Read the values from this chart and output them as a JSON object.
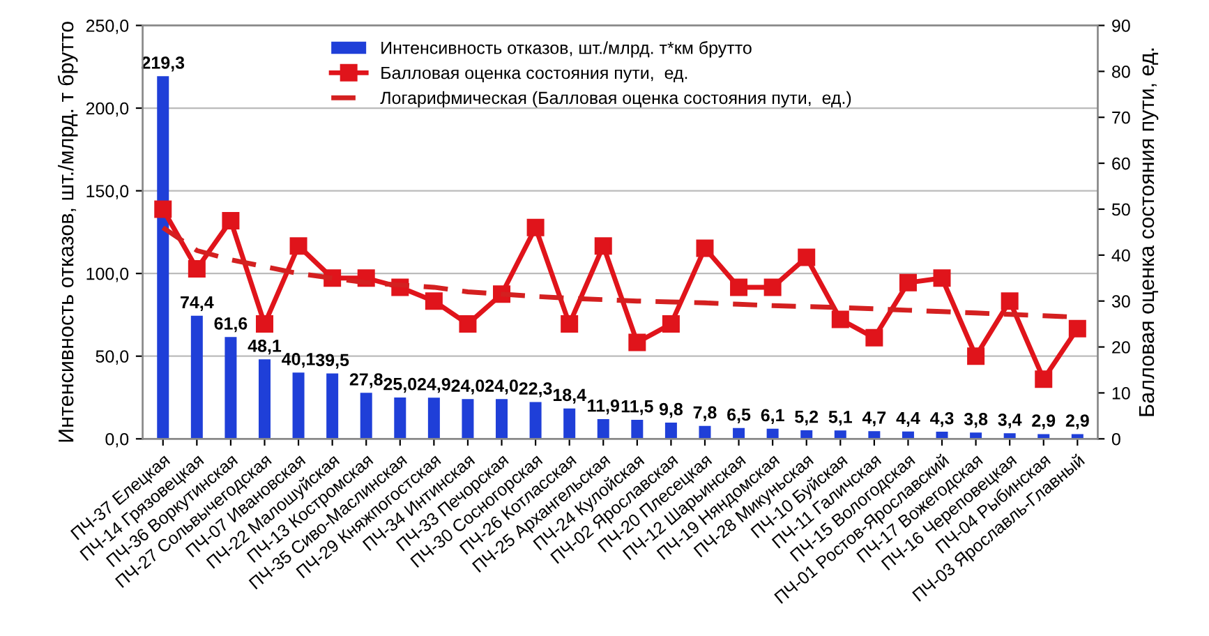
{
  "chart_data": {
    "type": "bar",
    "ylabel": "Интенсивность отказов, шт./млрд. т брутто",
    "y2label": "Балловая оценка состояния пути, ед.",
    "categories": [
      "ПЧ-37 Елецкая",
      "ПЧ-14 Грязовецкая",
      "ПЧ-36 Воркутинская",
      "ПЧ-27 Сольвычегодская",
      "ПЧ-07 Ивановская",
      "ПЧ-22 Малошуйская",
      "ПЧ-13 Костромская",
      "ПЧ-35 Сиво-Маслинская",
      "ПЧ-29 Княжпогостская",
      "ПЧ-34 Интинская",
      "ПЧ-33 Печорская",
      "ПЧ-30 Сосногорская",
      "ПЧ-26 Котласская",
      "ПЧ-25 Архангельская",
      "ПЧ-24 Кулойская",
      "ПЧ-02 Ярославская",
      "ПЧ-20 Плесецкая",
      "ПЧ-12 Шарьинская",
      "ПЧ-19 Няндомская",
      "ПЧ-28 Микуньская",
      "ПЧ-10 Буйская",
      "ПЧ-11 Галичская",
      "ПЧ-15 Вологодская",
      "ПЧ-01 Ростов-Ярославский",
      "ПЧ-17 Вожегодская",
      "ПЧ-16 Череповецкая",
      "ПЧ-04 Рыбинская",
      "ПЧ-03 Ярославль-Главный"
    ],
    "series": [
      {
        "name": "Интенсивность отказов, шт./млрд. т*км брутто",
        "color": "#1f3fd8",
        "values": [
          219.3,
          74.4,
          61.6,
          48.1,
          40.1,
          39.5,
          27.8,
          25.0,
          24.9,
          24.0,
          24.0,
          22.3,
          18.4,
          11.9,
          11.5,
          9.8,
          7.8,
          6.5,
          6.1,
          5.2,
          5.1,
          4.7,
          4.4,
          4.3,
          3.8,
          3.4,
          2.9,
          2.9
        ],
        "value_labels": [
          "219,3",
          "74,4",
          "61,6",
          "48,1",
          "40,1",
          "39,5",
          "27,8",
          "25,0",
          "24,9",
          "24,0",
          "24,0",
          "22,3",
          "18,4",
          "11,9",
          "11,5",
          "9,8",
          "7,8",
          "6,5",
          "6,1",
          "5,2",
          "5,1",
          "4,7",
          "4,4",
          "4,3",
          "3,8",
          "3,4",
          "2,9",
          "2,9"
        ]
      },
      {
        "name": "Балловая оценка состояния пути,  ед.",
        "type": "line",
        "axis": "y2",
        "color": "#e0141b",
        "marker": "square",
        "line_style": "solid",
        "values": [
          50,
          37,
          47.5,
          25,
          42,
          35,
          35,
          33,
          30,
          25,
          31.5,
          46,
          25,
          42,
          21,
          25,
          41.5,
          33,
          33,
          39.5,
          26,
          22,
          34,
          35,
          18,
          30,
          13,
          24
        ]
      },
      {
        "name": "Логарифмическая (Балловая оценка состояния пути,  ед.)",
        "type": "line",
        "axis": "y2",
        "color": "#d42020",
        "marker": "none",
        "line_style": "dashed",
        "values": [
          46,
          41,
          39,
          37.5,
          36,
          35,
          34,
          33.5,
          33,
          32,
          31.5,
          31,
          30.6,
          30.3,
          30,
          29.8,
          29.6,
          29.3,
          29,
          28.8,
          28.6,
          28.3,
          28,
          27.7,
          27.4,
          27.1,
          26.8,
          26.5
        ]
      }
    ],
    "ylim": [
      0,
      250
    ],
    "yticks": [
      {
        "value": 0,
        "label": "0,0"
      },
      {
        "value": 50,
        "label": "50,0"
      },
      {
        "value": 100,
        "label": "100,0"
      },
      {
        "value": 150,
        "label": "150,0"
      },
      {
        "value": 200,
        "label": "200,0"
      },
      {
        "value": 250,
        "label": "250,0"
      }
    ],
    "y2lim": [
      0,
      90
    ],
    "y2ticks": [
      0,
      10,
      20,
      30,
      40,
      50,
      60,
      70,
      80,
      90
    ],
    "grid": "y",
    "legend": "top"
  }
}
